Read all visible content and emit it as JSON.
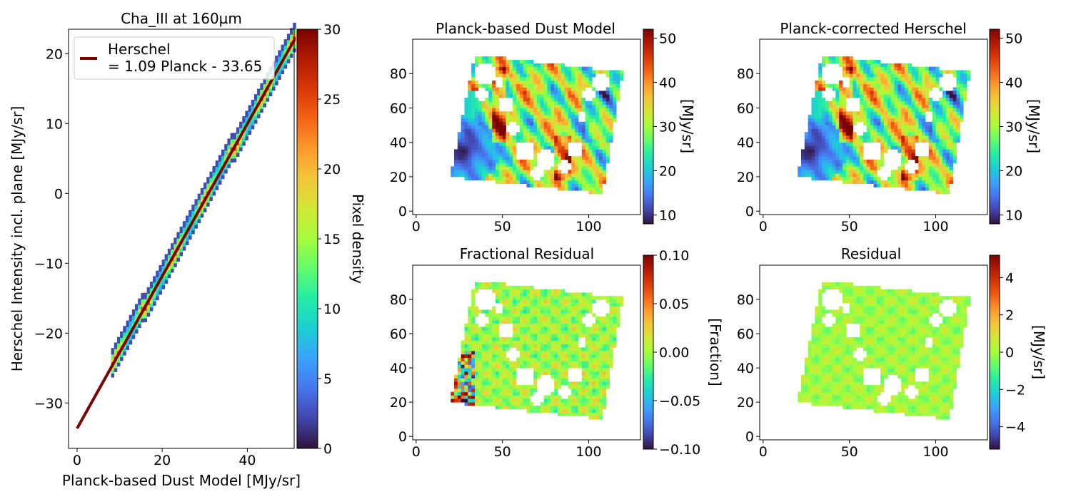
{
  "figure": {
    "turbo_stops": [
      "#30123b",
      "#4145ab",
      "#4675ed",
      "#39a2fc",
      "#1bcfd4",
      "#24eca6",
      "#61fc6c",
      "#a4fc3b",
      "#d1e834",
      "#f3c63a",
      "#fe9b2d",
      "#f36315",
      "#d93806",
      "#b11901",
      "#7a0402"
    ]
  },
  "chart_data": [
    {
      "id": "scatter",
      "type": "heatmap",
      "title": "Cha_III at 160µm",
      "xlabel": "Planck-based Dust Model [MJy/sr]",
      "ylabel": "Herschel Intensity incl. plane [MJy/sr]",
      "xlim": [
        -2,
        51
      ],
      "ylim": [
        -36.5,
        23.5
      ],
      "xticks": [
        0,
        20,
        40
      ],
      "yticks": [
        -30,
        -20,
        -10,
        0,
        10,
        20
      ],
      "xtick_labels": [
        "0",
        "20",
        "40"
      ],
      "ytick_labels": [
        "−30",
        "−20",
        "−10",
        "0",
        "10",
        "20"
      ],
      "fit_line": {
        "x": [
          0,
          51
        ],
        "y": [
          -33.65,
          21.94
        ],
        "color": "#7a0402"
      },
      "legend": {
        "label_line1": "Herschel",
        "label_line2": "= 1.09 Planck - 33.65",
        "placement": "upper-left"
      },
      "density_band": {
        "x_range": [
          8,
          51
        ],
        "slope": 1.09,
        "intercept": -33.65
      },
      "colorbar": {
        "label": "Pixel density",
        "range": [
          0,
          30
        ],
        "ticks": [
          0,
          5,
          10,
          15,
          20,
          25,
          30
        ],
        "tick_labels": [
          "0",
          "5",
          "10",
          "15",
          "20",
          "25",
          "30"
        ]
      }
    },
    {
      "id": "model",
      "type": "heatmap",
      "title": "Planck-based Dust Model",
      "xlim": [
        -2,
        130
      ],
      "ylim": [
        -2,
        100
      ],
      "xticks": [
        0,
        50,
        100
      ],
      "yticks": [
        0,
        20,
        40,
        60,
        80
      ],
      "xtick_labels": [
        "0",
        "50",
        "100"
      ],
      "ytick_labels": [
        "0",
        "20",
        "40",
        "60",
        "80"
      ],
      "region_corners": [
        [
          20,
          20
        ],
        [
          34,
          91
        ],
        [
          120,
          81
        ],
        [
          108,
          10
        ]
      ],
      "colorbar": {
        "label": "[MJy/sr]",
        "range": [
          8,
          52
        ],
        "ticks": [
          10,
          20,
          30,
          40,
          50
        ],
        "tick_labels": [
          "10",
          "20",
          "30",
          "40",
          "50"
        ]
      }
    },
    {
      "id": "corrected",
      "type": "heatmap",
      "title": "Planck-corrected Herschel",
      "xlim": [
        -2,
        130
      ],
      "ylim": [
        -2,
        100
      ],
      "xticks": [
        0,
        50,
        100
      ],
      "yticks": [
        0,
        20,
        40,
        60,
        80
      ],
      "xtick_labels": [
        "0",
        "50",
        "100"
      ],
      "ytick_labels": [
        "0",
        "20",
        "40",
        "60",
        "80"
      ],
      "region_corners": [
        [
          20,
          20
        ],
        [
          34,
          91
        ],
        [
          120,
          81
        ],
        [
          108,
          10
        ]
      ],
      "colorbar": {
        "label": "[MJy/sr]",
        "range": [
          8,
          52
        ],
        "ticks": [
          10,
          20,
          30,
          40,
          50
        ],
        "tick_labels": [
          "10",
          "20",
          "30",
          "40",
          "50"
        ]
      }
    },
    {
      "id": "fracres",
      "type": "heatmap",
      "title": "Fractional Residual",
      "xlim": [
        -2,
        130
      ],
      "ylim": [
        -2,
        100
      ],
      "xticks": [
        0,
        50,
        100
      ],
      "yticks": [
        0,
        20,
        40,
        60,
        80
      ],
      "xtick_labels": [
        "0",
        "50",
        "100"
      ],
      "ytick_labels": [
        "0",
        "20",
        "40",
        "60",
        "80"
      ],
      "region_corners": [
        [
          20,
          20
        ],
        [
          34,
          91
        ],
        [
          120,
          81
        ],
        [
          108,
          10
        ]
      ],
      "colorbar": {
        "label": "[Fraction]",
        "range": [
          -0.1,
          0.1
        ],
        "ticks": [
          -0.1,
          -0.05,
          0.0,
          0.05,
          0.1
        ],
        "tick_labels": [
          "−0.10",
          "−0.05",
          "0.00",
          "0.05",
          "0.10"
        ]
      }
    },
    {
      "id": "residual",
      "type": "heatmap",
      "title": "Residual",
      "xlim": [
        -2,
        130
      ],
      "ylim": [
        -2,
        100
      ],
      "xticks": [
        0,
        50,
        100
      ],
      "yticks": [
        0,
        20,
        40,
        60,
        80
      ],
      "xtick_labels": [
        "0",
        "50",
        "100"
      ],
      "ytick_labels": [
        "0",
        "20",
        "40",
        "60",
        "80"
      ],
      "region_corners": [
        [
          20,
          20
        ],
        [
          34,
          91
        ],
        [
          120,
          81
        ],
        [
          108,
          10
        ]
      ],
      "colorbar": {
        "label": "[MJy/sr]",
        "range": [
          -5.2,
          5.2
        ],
        "ticks": [
          -4,
          -2,
          0,
          2,
          4
        ],
        "tick_labels": [
          "−4",
          "−2",
          "0",
          "2",
          "4"
        ]
      }
    }
  ]
}
